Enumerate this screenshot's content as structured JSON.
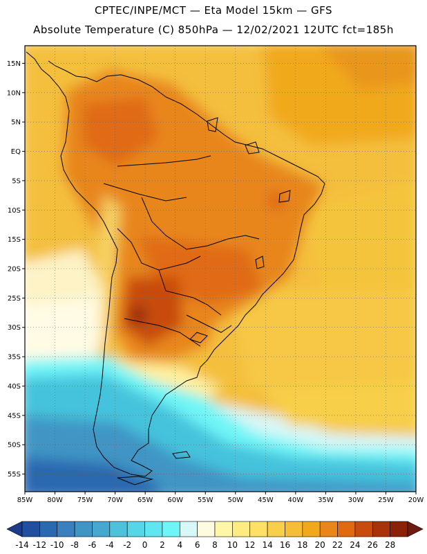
{
  "header": {
    "line1": "CPTEC/INPE/MCT —   Eta Model 15km — GFS",
    "line2": "Absolute Temperature (C) 850hPa — 12/02/2021 12UTC fct=185h"
  },
  "chart_data": {
    "type": "heatmap",
    "title": "CPTEC/INPE/MCT —   Eta Model 15km — GFS",
    "subtitle": "Absolute Temperature (C) 850hPa — 12/02/2021 12UTC fct=185h",
    "xlim": [
      -85,
      -20
    ],
    "ylim": [
      -58,
      18
    ],
    "lon_ticks": [
      -85,
      -80,
      -75,
      -70,
      -65,
      -60,
      -55,
      -50,
      -45,
      -40,
      -35,
      -30,
      -25,
      -20
    ],
    "lat_ticks": [
      15,
      10,
      5,
      0,
      -5,
      -10,
      -15,
      -20,
      -25,
      -30,
      -35,
      -40,
      -45,
      -50,
      -55
    ],
    "lon_labels": [
      "85W",
      "80W",
      "75W",
      "70W",
      "65W",
      "60W",
      "55W",
      "50W",
      "45W",
      "40W",
      "35W",
      "30W",
      "25W",
      "20W"
    ],
    "lat_labels": [
      "15N",
      "10N",
      "5N",
      "EQ",
      "5S",
      "10S",
      "15S",
      "20S",
      "25S",
      "30S",
      "35S",
      "40S",
      "45S",
      "50S",
      "55S"
    ],
    "grid": true,
    "colorbar": {
      "levels": [
        -14,
        -12,
        -10,
        -8,
        -6,
        -4,
        -2,
        0,
        2,
        4,
        6,
        8,
        10,
        12,
        14,
        16,
        18,
        20,
        22,
        24,
        26,
        28
      ],
      "labels": [
        "-14",
        "-12",
        "-10",
        "-8",
        "-6",
        "-4",
        "-2",
        "0",
        "2",
        "4",
        "6",
        "8",
        "10",
        "12",
        "14",
        "16",
        "18",
        "20",
        "22",
        "24",
        "26",
        "28"
      ],
      "colors": [
        "#1e3a8c",
        "#1f4f9e",
        "#2a68b0",
        "#3a7fbe",
        "#3f95c4",
        "#45a9cf",
        "#4ec2dc",
        "#56d6e6",
        "#5fe6f0",
        "#6ff5f7",
        "#d8f7f7",
        "#fffbe0",
        "#fff6a8",
        "#fdec82",
        "#fde065",
        "#f8cf4a",
        "#f5be36",
        "#f1a91c",
        "#e8861a",
        "#e06a12",
        "#c84c0e",
        "#a8320a",
        "#8a2208",
        "#6e1a10"
      ]
    }
  }
}
